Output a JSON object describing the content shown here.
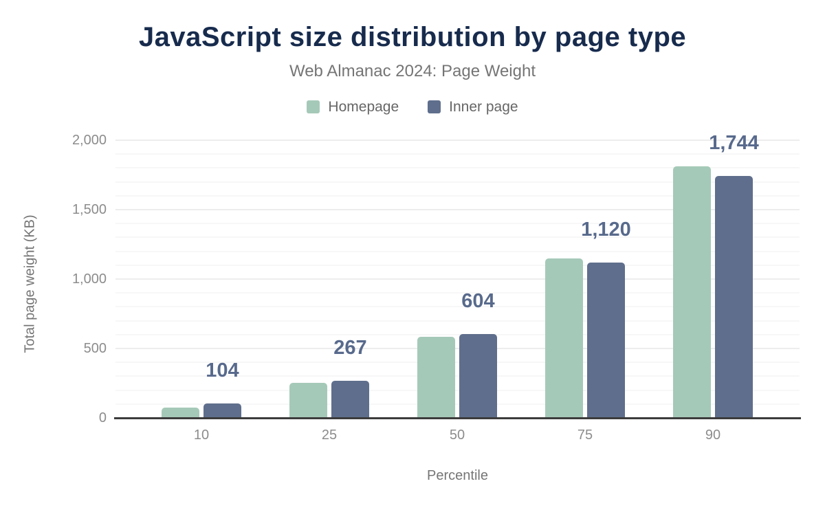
{
  "header": {
    "title": "JavaScript size distribution by page type",
    "subtitle": "Web Almanac 2024: Page Weight"
  },
  "chart_data": {
    "type": "bar",
    "title": "JavaScript size distribution by page type",
    "subtitle": "Web Almanac 2024: Page Weight",
    "xlabel": "Percentile",
    "ylabel": "Total page weight (KB)",
    "categories": [
      "10",
      "25",
      "50",
      "75",
      "90"
    ],
    "series": [
      {
        "name": "Homepage",
        "color": "#a5c9b8",
        "values": [
          75,
          250,
          585,
          1148,
          1812
        ],
        "labels_shown": false
      },
      {
        "name": "Inner page",
        "color": "#5f6e8c",
        "values": [
          104,
          267,
          604,
          1120,
          1744
        ],
        "labels_shown": true,
        "value_labels": [
          "104",
          "267",
          "604",
          "1,120",
          "1,744"
        ]
      }
    ],
    "ylim": [
      0,
      2000
    ],
    "yticks": [
      {
        "value": 0,
        "label": "0"
      },
      {
        "value": 500,
        "label": "500"
      },
      {
        "value": 1000,
        "label": "1,000"
      },
      {
        "value": 1500,
        "label": "1,500"
      },
      {
        "value": 2000,
        "label": "2,000"
      }
    ],
    "ytick_step_minor": 100,
    "ytick_step_major": 500,
    "grid": "horizontal-on",
    "legend_position": "top"
  },
  "colors": {
    "title_text": "#172b4d",
    "subtitle_text": "#757575",
    "legend_text": "#666666",
    "tick_text": "#8c8c8c",
    "axis_title_text": "#757575",
    "value_label_text": "#586a8c",
    "homepage_bar": "#a5c9b8",
    "inner_page_bar": "#5f6e8c",
    "axis_line": "#3c3c3c",
    "grid_major": "#ededed",
    "grid_minor": "#f7f7f7",
    "background": "#ffffff"
  }
}
